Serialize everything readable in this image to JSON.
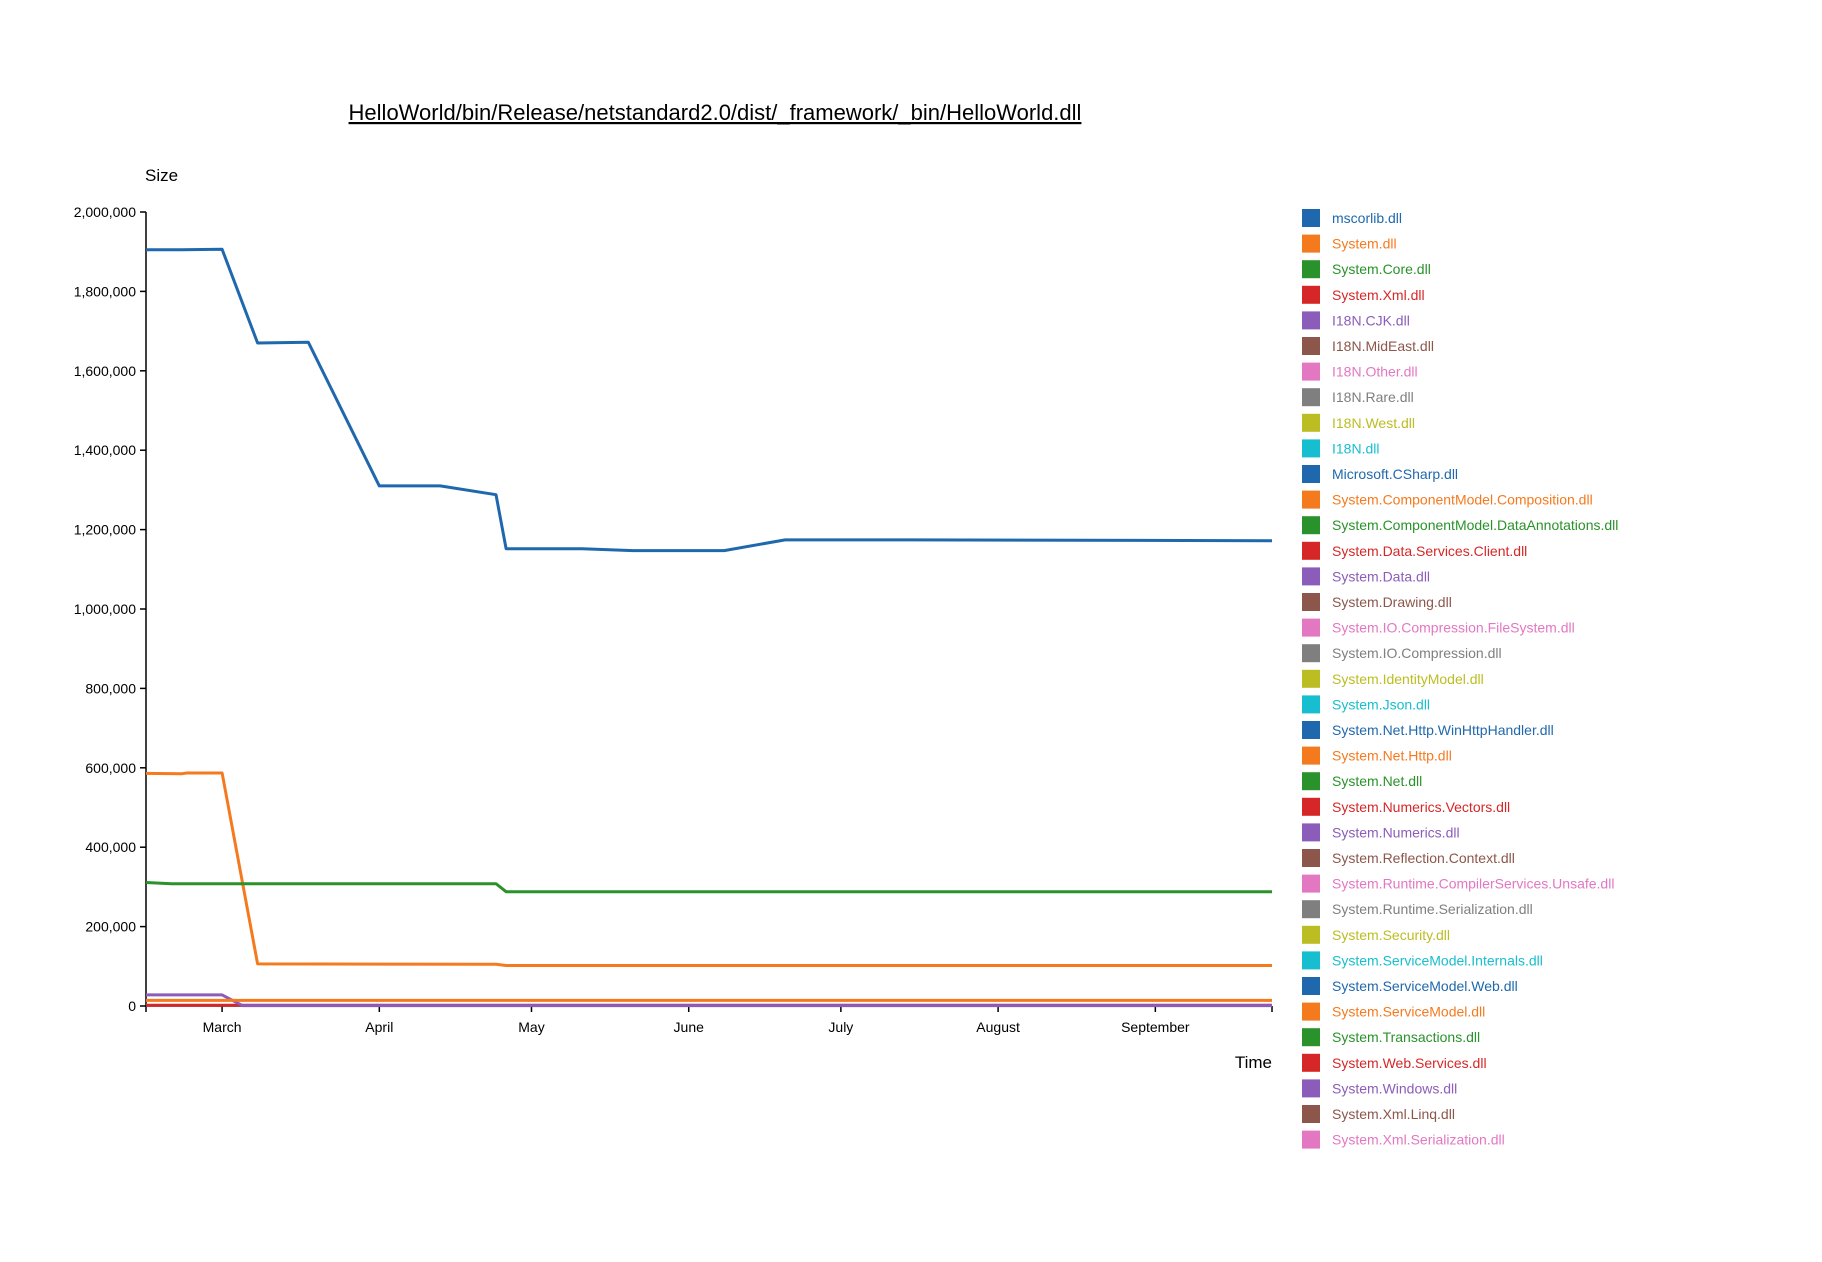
{
  "chart_data": {
    "type": "line",
    "title": "HelloWorld/bin/Release/netstandard2.0/dist/_framework/_bin/HelloWorld.dll",
    "xlabel": "Time",
    "ylabel": "Size",
    "x_tick_labels": [
      "March",
      "April",
      "May",
      "June",
      "July",
      "August",
      "September"
    ],
    "xlim": [
      "2018-02-14",
      "2018-09-24"
    ],
    "x_ticks": [
      "2018-03-01",
      "2018-04-01",
      "2018-05-01",
      "2018-06-01",
      "2018-07-01",
      "2018-08-01",
      "2018-09-01"
    ],
    "ylim": [
      0,
      2000000
    ],
    "y_ticks": [
      0,
      200000,
      400000,
      600000,
      800000,
      1000000,
      1200000,
      1400000,
      1600000,
      1800000,
      2000000
    ],
    "y_tick_labels": [
      "0",
      "200,000",
      "400,000",
      "600,000",
      "800,000",
      "1,000,000",
      "1,200,000",
      "1,400,000",
      "1,600,000",
      "1,800,000",
      "2,000,000"
    ],
    "legend_position": "right",
    "grid": false,
    "series": [
      {
        "name": "mscorlib.dll",
        "color": "#1f68ad",
        "points": [
          [
            "2018-02-14",
            1905000
          ],
          [
            "2018-02-21",
            1905000
          ],
          [
            "2018-03-01",
            1906000
          ],
          [
            "2018-03-08",
            1670000
          ],
          [
            "2018-03-18",
            1672000
          ],
          [
            "2018-04-01",
            1310000
          ],
          [
            "2018-04-13",
            1310000
          ],
          [
            "2018-04-24",
            1288000
          ],
          [
            "2018-04-26",
            1152000
          ],
          [
            "2018-05-11",
            1152000
          ],
          [
            "2018-05-21",
            1147000
          ],
          [
            "2018-06-08",
            1147000
          ],
          [
            "2018-06-20",
            1174000
          ],
          [
            "2018-07-15",
            1174000
          ],
          [
            "2018-09-24",
            1172000
          ]
        ]
      },
      {
        "name": "System.dll",
        "color": "#f57a1e",
        "points": [
          [
            "2018-02-14",
            586000
          ],
          [
            "2018-02-21",
            585000
          ],
          [
            "2018-02-22",
            587000
          ],
          [
            "2018-03-01",
            587000
          ],
          [
            "2018-03-08",
            106000
          ],
          [
            "2018-04-24",
            105000
          ],
          [
            "2018-04-26",
            102000
          ],
          [
            "2018-09-24",
            102000
          ]
        ]
      },
      {
        "name": "System.Core.dll",
        "color": "#2a922a",
        "points": [
          [
            "2018-02-14",
            311000
          ],
          [
            "2018-02-19",
            308000
          ],
          [
            "2018-04-24",
            308000
          ],
          [
            "2018-04-26",
            288000
          ],
          [
            "2018-09-24",
            288000
          ]
        ]
      },
      {
        "name": "System.Xml.dll",
        "color": "#d62728",
        "points": [
          [
            "2018-02-14",
            2000
          ],
          [
            "2018-09-24",
            2000
          ]
        ]
      },
      {
        "name": "I18N.CJK.dll",
        "color": "#8c5cba",
        "points": [
          [
            "2018-02-14",
            28000
          ],
          [
            "2018-03-01",
            28000
          ],
          [
            "2018-03-05",
            1000
          ],
          [
            "2018-09-24",
            1000
          ]
        ]
      },
      {
        "name": "I18N.MidEast.dll",
        "color": "#8c564b",
        "points": []
      },
      {
        "name": "I18N.Other.dll",
        "color": "#e377c2",
        "points": []
      },
      {
        "name": "I18N.Rare.dll",
        "color": "#7f7f7f",
        "points": []
      },
      {
        "name": "I18N.West.dll",
        "color": "#bcbd22",
        "points": []
      },
      {
        "name": "I18N.dll",
        "color": "#17becf",
        "points": []
      },
      {
        "name": "Microsoft.CSharp.dll",
        "color": "#1f68ad",
        "points": []
      },
      {
        "name": "System.ComponentModel.Composition.dll",
        "color": "#f57a1e",
        "points": []
      },
      {
        "name": "System.ComponentModel.DataAnnotations.dll",
        "color": "#2a922a",
        "points": []
      },
      {
        "name": "System.Data.Services.Client.dll",
        "color": "#d62728",
        "points": []
      },
      {
        "name": "System.Data.dll",
        "color": "#8c5cba",
        "points": []
      },
      {
        "name": "System.Drawing.dll",
        "color": "#8c564b",
        "points": []
      },
      {
        "name": "System.IO.Compression.FileSystem.dll",
        "color": "#e377c2",
        "points": []
      },
      {
        "name": "System.IO.Compression.dll",
        "color": "#7f7f7f",
        "points": []
      },
      {
        "name": "System.IdentityModel.dll",
        "color": "#bcbd22",
        "points": []
      },
      {
        "name": "System.Json.dll",
        "color": "#17becf",
        "points": []
      },
      {
        "name": "System.Net.Http.WinHttpHandler.dll",
        "color": "#1f68ad",
        "points": []
      },
      {
        "name": "System.Net.Http.dll",
        "color": "#f57a1e",
        "points": [
          [
            "2018-02-14",
            14000
          ],
          [
            "2018-09-24",
            14000
          ]
        ]
      },
      {
        "name": "System.Net.dll",
        "color": "#2a922a",
        "points": []
      },
      {
        "name": "System.Numerics.Vectors.dll",
        "color": "#d62728",
        "points": []
      },
      {
        "name": "System.Numerics.dll",
        "color": "#8c5cba",
        "points": []
      },
      {
        "name": "System.Reflection.Context.dll",
        "color": "#8c564b",
        "points": []
      },
      {
        "name": "System.Runtime.CompilerServices.Unsafe.dll",
        "color": "#e377c2",
        "points": []
      },
      {
        "name": "System.Runtime.Serialization.dll",
        "color": "#7f7f7f",
        "points": []
      },
      {
        "name": "System.Security.dll",
        "color": "#bcbd22",
        "points": []
      },
      {
        "name": "System.ServiceModel.Internals.dll",
        "color": "#17becf",
        "points": []
      },
      {
        "name": "System.ServiceModel.Web.dll",
        "color": "#1f68ad",
        "points": []
      },
      {
        "name": "System.ServiceModel.dll",
        "color": "#f57a1e",
        "points": []
      },
      {
        "name": "System.Transactions.dll",
        "color": "#2a922a",
        "points": []
      },
      {
        "name": "System.Web.Services.dll",
        "color": "#d62728",
        "points": []
      },
      {
        "name": "System.Windows.dll",
        "color": "#8c5cba",
        "points": []
      },
      {
        "name": "System.Xml.Linq.dll",
        "color": "#8c564b",
        "points": []
      },
      {
        "name": "System.Xml.Serialization.dll",
        "color": "#e377c2",
        "points": []
      }
    ]
  }
}
